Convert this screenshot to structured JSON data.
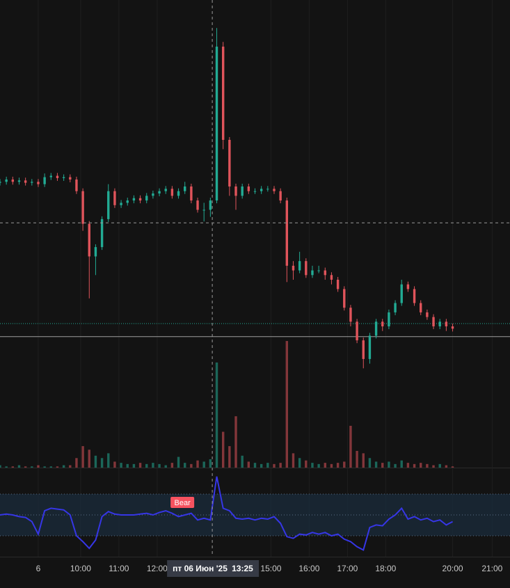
{
  "chart_data": {
    "type": "candlestick",
    "xlim": [
      0,
      160
    ],
    "xticks": [
      {
        "value": 12,
        "label": "6"
      },
      {
        "value": 25.3,
        "label": "10:00"
      },
      {
        "value": 37.3,
        "label": "11:00"
      },
      {
        "value": 49.3,
        "label": "12:00"
      },
      {
        "value": 85,
        "label": "15:00"
      },
      {
        "value": 97,
        "label": "16:00"
      },
      {
        "value": 109,
        "label": "17:00"
      },
      {
        "value": 121,
        "label": "18:00"
      },
      {
        "value": 142,
        "label": "20:00"
      },
      {
        "value": 154.4,
        "label": "21:00"
      }
    ],
    "ylim": [
      0,
      100
    ],
    "up_color": "#22ab94",
    "down_color": "#e0545b",
    "x": [
      0,
      2,
      4,
      6,
      8,
      10,
      12,
      14,
      16,
      18,
      20,
      22,
      24,
      26,
      28,
      30,
      32,
      34,
      36,
      38,
      40,
      42,
      44,
      46,
      48,
      50,
      52,
      54,
      56,
      58,
      60,
      62,
      64,
      66,
      68,
      70,
      72,
      74,
      76,
      78,
      80,
      82,
      84,
      86,
      88,
      90,
      92,
      94,
      96,
      98,
      100,
      102,
      104,
      106,
      108,
      110,
      112,
      114,
      116,
      118,
      120,
      122,
      124,
      126,
      128,
      130,
      132,
      134,
      136,
      138,
      140,
      142
    ],
    "open": [
      60.8,
      61,
      61.5,
      61,
      61.3,
      60.8,
      61,
      60.5,
      62,
      62.3,
      61.8,
      62,
      61.5,
      59,
      52,
      45,
      47,
      53,
      59,
      56,
      56.5,
      57,
      57.5,
      57,
      58,
      58.5,
      59,
      59.5,
      58,
      59,
      60,
      57,
      55,
      55,
      57,
      90,
      70,
      60,
      58,
      60,
      59,
      59,
      59.5,
      59.5,
      59,
      57,
      43,
      42,
      44,
      41,
      42,
      42,
      41,
      40,
      38,
      34,
      31,
      27,
      23,
      28,
      31,
      30,
      33,
      35,
      39,
      38,
      35,
      33,
      32,
      30,
      31,
      30
    ],
    "high": [
      61.6,
      62.1,
      62.1,
      61.9,
      61.9,
      61.6,
      61.6,
      62.8,
      62.9,
      62.9,
      62.6,
      62.6,
      62.1,
      59.6,
      52.6,
      47.6,
      53.6,
      60.5,
      59.6,
      57.1,
      57.6,
      58.1,
      58.1,
      58.6,
      59.1,
      59.6,
      60.1,
      60.1,
      59.6,
      61,
      60.6,
      57.6,
      56.5,
      57.6,
      94,
      91,
      70.6,
      60.6,
      60.6,
      60.6,
      59.6,
      60.1,
      60.1,
      60.1,
      59.6,
      57.6,
      44,
      46,
      44.6,
      43,
      43,
      42.6,
      41.6,
      40.6,
      38.6,
      34.6,
      31.6,
      27.6,
      28.6,
      31.6,
      31.6,
      33.6,
      35.6,
      40,
      39.6,
      38.6,
      35.6,
      33.6,
      32.6,
      31.6,
      31.6,
      30.6
    ],
    "low": [
      60.2,
      60.4,
      60.4,
      60.4,
      60.2,
      60.2,
      59.9,
      59.9,
      61.4,
      61.2,
      61.2,
      60.9,
      58.4,
      50.5,
      36,
      41,
      46.4,
      52.4,
      55.4,
      55.4,
      55.9,
      56.4,
      56.4,
      56.4,
      57.4,
      57.9,
      58.4,
      57.4,
      57.4,
      58.4,
      56.4,
      54.4,
      52.5,
      53.5,
      56.4,
      68,
      58,
      55,
      57.4,
      58.4,
      58.4,
      58.4,
      58.9,
      58.4,
      56.4,
      39.5,
      40,
      41.4,
      40.4,
      40.4,
      41.4,
      40,
      39,
      37.4,
      33.4,
      30,
      26.4,
      21,
      22,
      27.4,
      29,
      29.4,
      32.4,
      34.4,
      37.4,
      34.4,
      32.4,
      31.4,
      29.4,
      29.4,
      29,
      28.9
    ],
    "close": [
      61,
      61.5,
      61,
      61.3,
      60.8,
      61,
      60.5,
      62,
      62.3,
      61.8,
      62,
      61.5,
      59,
      52,
      45,
      47,
      53,
      59,
      56,
      56.5,
      57,
      57.5,
      57,
      58,
      58.5,
      59,
      59.5,
      58,
      59,
      60,
      57,
      55,
      55,
      57,
      90,
      70,
      60,
      58,
      60,
      59,
      59,
      59.5,
      59.5,
      59,
      57,
      43,
      42,
      44,
      41,
      42,
      42,
      41,
      40,
      38,
      34,
      31,
      27,
      23,
      28,
      31,
      30,
      33,
      35,
      39,
      38,
      35,
      33,
      32,
      30,
      31,
      30,
      29.5
    ],
    "crosshair": {
      "x": 66.6,
      "y": 52.2,
      "date_label": "пт 06 Июн '25",
      "time_label": "13:25"
    },
    "price_lines": [
      {
        "value": 30.6,
        "color": "#22ab94",
        "style": "dotted"
      },
      {
        "value": 27.8,
        "color": "#9e9e9e",
        "style": "solid"
      }
    ],
    "volume": {
      "ylim": [
        0,
        120
      ],
      "values": [
        2,
        1,
        1,
        2,
        1,
        1,
        2,
        1,
        1,
        1,
        2,
        2,
        8,
        18,
        15,
        10,
        8,
        12,
        5,
        4,
        3,
        3,
        4,
        3,
        4,
        3,
        2,
        4,
        9,
        4,
        3,
        6,
        5,
        7,
        88,
        30,
        18,
        43,
        10,
        5,
        4,
        3,
        4,
        3,
        4,
        106,
        12,
        8,
        6,
        4,
        3,
        4,
        3,
        4,
        5,
        35,
        14,
        12,
        8,
        5,
        4,
        5,
        3,
        6,
        4,
        3,
        4,
        3,
        2,
        3,
        2,
        1
      ]
    },
    "indicator": {
      "ylim": [
        0,
        100
      ],
      "color": "#3636e6",
      "bands": [
        25,
        50,
        75
      ],
      "values": [
        50,
        51,
        50,
        48,
        47,
        42,
        27,
        55,
        58,
        57,
        56,
        50,
        25,
        18,
        10,
        20,
        48,
        54,
        51,
        50,
        50,
        50,
        51,
        52,
        50,
        53,
        55,
        52,
        48,
        50,
        52,
        44,
        46,
        44,
        96,
        58,
        55,
        46,
        45,
        46,
        44,
        46,
        45,
        48,
        40,
        24,
        22,
        27,
        26,
        29,
        27,
        29,
        25,
        27,
        21,
        18,
        12,
        8,
        35,
        38,
        37,
        45,
        50,
        58,
        45,
        48,
        44,
        46,
        42,
        44,
        38,
        42
      ],
      "annotation": {
        "label": "Bear",
        "x": 57,
        "y": 65,
        "color": "#f7525f"
      }
    }
  }
}
